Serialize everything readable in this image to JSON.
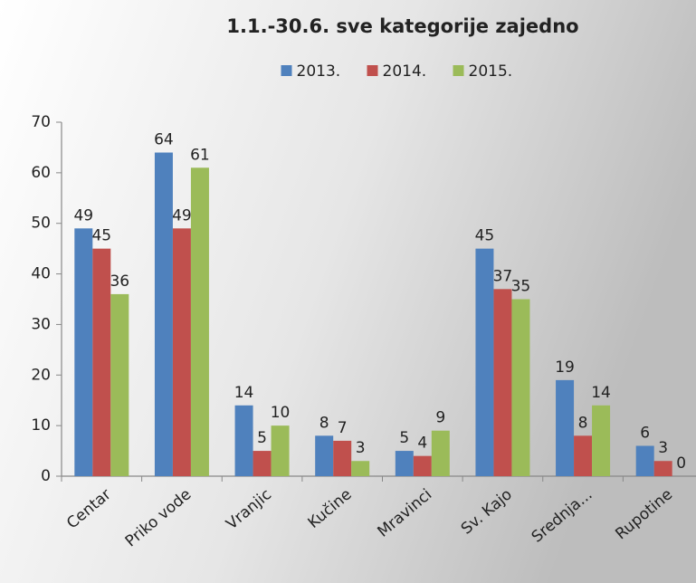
{
  "chart_data": {
    "type": "bar",
    "title": "1.1.-30.6. sve kategorije zajedno",
    "categories": [
      "Centar",
      "Priko vode",
      "Vranjic",
      "Kučine",
      "Mravinci",
      "Sv. Kajo",
      "Srednja...",
      "Rupotine"
    ],
    "series": [
      {
        "name": "2013.",
        "color": "#4f81bd",
        "values": [
          49,
          64,
          14,
          8,
          5,
          45,
          19,
          6
        ]
      },
      {
        "name": "2014.",
        "color": "#c0504d",
        "values": [
          45,
          49,
          5,
          7,
          4,
          37,
          8,
          3
        ]
      },
      {
        "name": "2015.",
        "color": "#9bbb59",
        "values": [
          36,
          61,
          10,
          3,
          9,
          35,
          14,
          0
        ]
      }
    ],
    "ylim": [
      0,
      70
    ],
    "yticks": [
      0,
      10,
      20,
      30,
      40,
      50,
      60,
      70
    ],
    "legend": "top",
    "grid": false
  }
}
